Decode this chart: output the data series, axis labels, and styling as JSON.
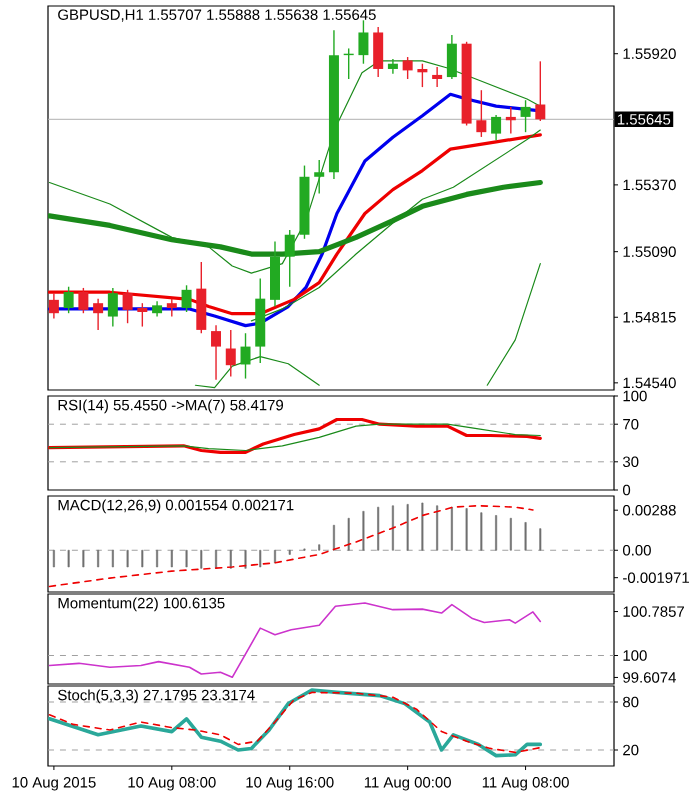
{
  "chart_data": [
    {
      "type": "candlestick",
      "title": "GBPUSD,H1 1.55707 1.55888 1.55638 1.55645",
      "xlim": [
        "2015-08-09T23:36",
        "2015-08-11T14:00"
      ],
      "ylim": [
        1.5451,
        1.5612
      ],
      "tick_labels": "y",
      "yticks": [
        {
          "value": 1.5592,
          "label": "1.55920"
        },
        {
          "value": 1.5537,
          "label": "1.55370"
        },
        {
          "value": 1.5509,
          "label": "1.55090"
        },
        {
          "value": 1.54815,
          "label": "1.54815"
        },
        {
          "value": 1.5454,
          "label": "1.54540"
        }
      ],
      "ref_lines": [
        {
          "axis": "y",
          "value": 1.55645,
          "label": "1.55645",
          "color": "#b0b0b0"
        }
      ],
      "x": [
        "2015-08-10T00:00",
        "2015-08-10T01:00",
        "2015-08-10T02:00",
        "2015-08-10T03:00",
        "2015-08-10T04:00",
        "2015-08-10T05:00",
        "2015-08-10T06:00",
        "2015-08-10T07:00",
        "2015-08-10T08:00",
        "2015-08-10T09:00",
        "2015-08-10T10:00",
        "2015-08-10T11:00",
        "2015-08-10T12:00",
        "2015-08-10T13:00",
        "2015-08-10T14:00",
        "2015-08-10T15:00",
        "2015-08-10T16:00",
        "2015-08-10T17:00",
        "2015-08-10T18:00",
        "2015-08-10T19:00",
        "2015-08-10T20:00",
        "2015-08-10T21:00",
        "2015-08-10T22:00",
        "2015-08-10T23:00",
        "2015-08-11T00:00",
        "2015-08-11T01:00",
        "2015-08-11T02:00",
        "2015-08-11T03:00",
        "2015-08-11T04:00",
        "2015-08-11T05:00",
        "2015-08-11T06:00",
        "2015-08-11T07:00",
        "2015-08-11T08:00",
        "2015-08-11T09:00"
      ],
      "ohlc": [
        [
          1.54888,
          1.54916,
          1.5481,
          1.54832
        ],
        [
          1.54854,
          1.54943,
          1.54832,
          1.54921
        ],
        [
          1.54921,
          1.54938,
          1.54832,
          1.54846
        ],
        [
          1.54874,
          1.54893,
          1.54762,
          1.54832
        ],
        [
          1.54818,
          1.54938,
          1.54776,
          1.54916
        ],
        [
          1.54916,
          1.5493,
          1.5479,
          1.54846
        ],
        [
          1.54854,
          1.54874,
          1.54776,
          1.54837
        ],
        [
          1.54832,
          1.54882,
          1.54818,
          1.54865
        ],
        [
          1.54874,
          1.54893,
          1.54818,
          1.54854
        ],
        [
          1.54854,
          1.54949,
          1.54837,
          1.5493
        ],
        [
          1.54935,
          1.55047,
          1.54748,
          1.54762
        ],
        [
          1.54757,
          1.54782,
          1.54553,
          1.54692
        ],
        [
          1.54684,
          1.54762,
          1.54567,
          1.54614
        ],
        [
          1.54617,
          1.54748,
          1.54558,
          1.54692
        ],
        [
          1.54692,
          1.54977,
          1.54623,
          1.54893
        ],
        [
          1.54888,
          1.55133,
          1.5486,
          1.55069
        ],
        [
          1.55069,
          1.55181,
          1.54943,
          1.55161
        ],
        [
          1.55161,
          1.55451,
          1.55144,
          1.55404
        ],
        [
          1.55404,
          1.55474,
          1.55334,
          1.55423
        ],
        [
          1.55423,
          1.56018,
          1.55395,
          1.55914
        ],
        [
          1.55914,
          1.55942,
          1.55814,
          1.5592
        ],
        [
          1.55914,
          1.5606,
          1.55878,
          1.56009
        ],
        [
          1.56009,
          1.56032,
          1.55822,
          1.55856
        ],
        [
          1.55856,
          1.55898,
          1.55836,
          1.55878
        ],
        [
          1.55892,
          1.55906,
          1.55814,
          1.5585
        ],
        [
          1.55856,
          1.55878,
          1.5578,
          1.55842
        ],
        [
          1.55831,
          1.55864,
          1.5578,
          1.55814
        ],
        [
          1.55822,
          1.55998,
          1.55814,
          1.55962
        ],
        [
          1.55962,
          1.5597,
          1.55619,
          1.55627
        ],
        [
          1.55641,
          1.55767,
          1.55571,
          1.55591
        ],
        [
          1.55585,
          1.55663,
          1.55557,
          1.55655
        ],
        [
          1.55655,
          1.55697,
          1.55585,
          1.55641
        ],
        [
          1.55655,
          1.55725,
          1.55591,
          1.55697
        ],
        [
          1.55707,
          1.55888,
          1.55638,
          1.55645
        ]
      ],
      "colors": [
        "#e8202a",
        "#22aa22",
        "#e8202a",
        "#e8202a",
        "#22aa22",
        "#e8202a",
        "#e8202a",
        "#22aa22",
        "#e8202a",
        "#22aa22",
        "#e8202a",
        "#e8202a",
        "#e8202a",
        "#22aa22",
        "#22aa22",
        "#22aa22",
        "#22aa22",
        "#22aa22",
        "#22aa22",
        "#22aa22",
        "#22aa22",
        "#22aa22",
        "#e8202a",
        "#22aa22",
        "#e8202a",
        "#e8202a",
        "#e8202a",
        "#22aa22",
        "#e8202a",
        "#e8202a",
        "#22aa22",
        "#e8202a",
        "#22aa22",
        "#e8202a"
      ],
      "series": [
        {
          "type": "line",
          "color": "#0000ee",
          "x": [
            "2015-08-09T23:42",
            "2015-08-10T03:48",
            "2015-08-10T09:12",
            "2015-08-10T10:54",
            "2015-08-10T13:00",
            "2015-08-10T14:00",
            "2015-08-10T15:54",
            "2015-08-10T17:06",
            "2015-08-10T18:12",
            "2015-08-10T19:12",
            "2015-08-10T21:06",
            "2015-08-10T23:00",
            "2015-08-11T01:00",
            "2015-08-11T02:54",
            "2015-08-11T04:00",
            "2015-08-11T06:00",
            "2015-08-11T09:00"
          ],
          "values": [
            1.5485,
            1.5485,
            1.5485,
            1.5482,
            1.5478,
            1.5479,
            1.5486,
            1.5494,
            1.5508,
            1.5525,
            1.5547,
            1.5557,
            1.5566,
            1.5575,
            1.5573,
            1.557,
            1.5568
          ]
        },
        {
          "type": "line",
          "color": "#ee0000",
          "x": [
            "2015-08-09T23:42",
            "2015-08-10T03:48",
            "2015-08-10T09:12",
            "2015-08-10T10:30",
            "2015-08-10T12:06",
            "2015-08-10T14:00",
            "2015-08-10T16:18",
            "2015-08-10T18:00",
            "2015-08-10T19:12",
            "2015-08-10T21:06",
            "2015-08-10T23:00",
            "2015-08-11T01:00",
            "2015-08-11T02:54",
            "2015-08-11T06:00",
            "2015-08-11T09:00"
          ],
          "values": [
            1.5492,
            1.5492,
            1.5489,
            1.5486,
            1.5483,
            1.5483,
            1.5489,
            1.5496,
            1.5508,
            1.5525,
            1.5535,
            1.5543,
            1.5552,
            1.5555,
            1.5558
          ]
        },
        {
          "type": "line",
          "color": "#1a8a1a",
          "x": [
            "2015-08-09T23:42",
            "2015-08-10T03:48",
            "2015-08-10T08:00",
            "2015-08-10T11:18",
            "2015-08-10T13:24",
            "2015-08-10T15:30",
            "2015-08-10T18:00",
            "2015-08-10T20:30",
            "2015-08-10T23:00",
            "2015-08-11T01:00",
            "2015-08-11T04:00",
            "2015-08-11T06:30",
            "2015-08-11T09:00"
          ],
          "values": [
            1.5524,
            1.552,
            1.5514,
            1.5511,
            1.5508,
            1.5508,
            1.5509,
            1.5515,
            1.5522,
            1.5528,
            1.5533,
            1.5536,
            1.5538
          ]
        },
        {
          "type": "line",
          "color": "#1a8a1a",
          "x": [
            "2015-08-09T23:42",
            "2015-08-10T03:48",
            "2015-08-10T08:00",
            "2015-08-10T10:30",
            "2015-08-10T12:06",
            "2015-08-10T13:24",
            "2015-08-10T15:30",
            "2015-08-10T17:06",
            "2015-08-10T19:06",
            "2015-08-10T20:54",
            "2015-08-10T22:06",
            "2015-08-11T01:00",
            "2015-08-11T02:42",
            "2015-08-11T04:48",
            "2015-08-11T08:06",
            "2015-08-11T09:00"
          ],
          "values": [
            1.5538,
            1.5529,
            1.5515,
            1.5511,
            1.5503,
            1.55,
            1.5504,
            1.5522,
            1.5561,
            1.5584,
            1.5589,
            1.5589,
            1.5586,
            1.5581,
            1.5573,
            1.557
          ]
        },
        {
          "type": "line",
          "color": "#1a8a1a",
          "x": [
            "2015-08-10T13:24",
            "2015-08-10T15:30",
            "2015-08-10T18:00",
            "2015-08-10T20:30",
            "2015-08-10T23:00",
            "2015-08-11T01:00",
            "2015-08-11T03:06",
            "2015-08-11T05:36",
            "2015-08-11T08:06",
            "2015-08-11T09:00"
          ],
          "values": [
            1.548,
            1.5485,
            1.5494,
            1.5508,
            1.5521,
            1.5531,
            1.5536,
            1.5546,
            1.5556,
            1.556
          ]
        },
        {
          "type": "line",
          "color": "#1a8a1a",
          "x": [
            "2015-08-10T09:36",
            "2015-08-10T10:54",
            "2015-08-10T12:06",
            "2015-08-10T14:00",
            "2015-08-10T15:54",
            "2015-08-10T18:00",
            "2015-08-11T00:00",
            "2015-08-11T05:24",
            "2015-08-11T07:18",
            "2015-08-11T09:00"
          ],
          "values": [
            1.5453,
            1.5452,
            1.5461,
            1.5465,
            1.5462,
            1.5453,
            null,
            1.5453,
            1.5472,
            1.5504
          ]
        }
      ]
    },
    {
      "type": "line",
      "title": "RSI(14) 55.4550 ->MA(7) 58.4179",
      "xlim": [
        "2015-08-09T23:36",
        "2015-08-11T14:00"
      ],
      "ylim": [
        0,
        100
      ],
      "tick_labels": "y",
      "yticks": [
        100,
        70,
        30,
        0
      ],
      "ref_lines": [
        {
          "axis": "y",
          "value": 70,
          "color": "#a0a0a0",
          "line_style": "dashed"
        },
        {
          "axis": "y",
          "value": 30,
          "color": "#a0a0a0",
          "line_style": "dashed"
        }
      ],
      "series": [
        {
          "color": "#ee0000",
          "x": [
            "2015-08-09T23:42",
            "2015-08-10T08:48",
            "2015-08-10T10:00",
            "2015-08-10T11:18",
            "2015-08-10T13:00",
            "2015-08-10T14:12",
            "2015-08-10T16:18",
            "2015-08-10T18:00",
            "2015-08-10T19:12",
            "2015-08-10T20:54",
            "2015-08-10T22:06",
            "2015-08-11T00:36",
            "2015-08-11T02:42",
            "2015-08-11T04:00",
            "2015-08-11T05:36",
            "2015-08-11T08:06",
            "2015-08-11T09:00"
          ],
          "values": [
            45,
            47,
            42,
            40,
            40,
            49,
            59,
            65,
            75,
            75,
            70,
            68,
            68,
            58,
            58,
            57,
            55
          ]
        },
        {
          "color": "#1a8a1a",
          "x": [
            "2015-08-09T23:42",
            "2015-08-10T08:48",
            "2015-08-10T10:30",
            "2015-08-10T13:00",
            "2015-08-10T15:30",
            "2015-08-10T18:00",
            "2015-08-10T20:30",
            "2015-08-10T22:06",
            "2015-08-11T02:42",
            "2015-08-11T04:48",
            "2015-08-11T07:18",
            "2015-08-11T09:00"
          ],
          "values": [
            45,
            47,
            44,
            42,
            47,
            56,
            68,
            70,
            70,
            65,
            59,
            58
          ]
        }
      ]
    },
    {
      "type": "bar",
      "title": "MACD(12,26,9) 0.001554 0.002171",
      "xlim": [
        "2015-08-09T23:36",
        "2015-08-11T14:00"
      ],
      "ylim": [
        -0.003,
        0.0039
      ],
      "tick_labels": "y",
      "yticks": [
        0.00288,
        {
          "value": 0,
          "label": "0.00"
        },
        -0.001971
      ],
      "ref_lines": [
        {
          "axis": "y",
          "value": 0,
          "color": "#a0a0a0",
          "line_style": "dashed"
        }
      ],
      "series": [
        {
          "type": "bar",
          "color": "#707070",
          "x": [
            "2015-08-10T00:00",
            "2015-08-10T01:00",
            "2015-08-10T02:00",
            "2015-08-10T03:00",
            "2015-08-10T04:00",
            "2015-08-10T05:00",
            "2015-08-10T06:00",
            "2015-08-10T07:00",
            "2015-08-10T08:00",
            "2015-08-10T09:00",
            "2015-08-10T10:00",
            "2015-08-10T11:00",
            "2015-08-10T12:00",
            "2015-08-10T13:00",
            "2015-08-10T14:00",
            "2015-08-10T15:00",
            "2015-08-10T16:00",
            "2015-08-10T17:00",
            "2015-08-10T18:00",
            "2015-08-10T19:00",
            "2015-08-10T20:00",
            "2015-08-10T21:00",
            "2015-08-10T22:00",
            "2015-08-10T23:00",
            "2015-08-11T00:00",
            "2015-08-11T01:00",
            "2015-08-11T02:00",
            "2015-08-11T03:00",
            "2015-08-11T04:00",
            "2015-08-11T05:00",
            "2015-08-11T06:00",
            "2015-08-11T07:00",
            "2015-08-11T08:00",
            "2015-08-11T09:00"
          ],
          "values": [
            -0.0012,
            -0.0012,
            -0.0012,
            -0.0012,
            -0.0012,
            -0.0012,
            -0.0012,
            -0.0012,
            -0.0012,
            -0.0012,
            -0.0013,
            -0.0013,
            -0.0013,
            -0.0013,
            -0.0012,
            -0.0009,
            -0.0003,
            0.0001,
            0.0004,
            0.0018,
            0.0023,
            0.0028,
            0.0031,
            0.0032,
            0.0033,
            0.0034,
            0.0032,
            0.0031,
            0.003,
            0.0027,
            0.0025,
            0.0023,
            0.002,
            0.001554
          ]
        },
        {
          "type": "line",
          "line_style": "dashed",
          "color": "#ee0000",
          "x": [
            "2015-08-09T23:42",
            "2015-08-10T03:48",
            "2015-08-10T08:00",
            "2015-08-10T12:06",
            "2015-08-10T15:00",
            "2015-08-10T18:00",
            "2015-08-10T20:30",
            "2015-08-10T23:00",
            "2015-08-11T01:00",
            "2015-08-11T03:06",
            "2015-08-11T04:48",
            "2015-08-11T07:18",
            "2015-08-11T08:30"
          ],
          "values": [
            -0.0026,
            -0.002,
            -0.0015,
            -0.0012,
            -0.0009,
            -0.0003,
            0.0006,
            0.0016,
            0.0025,
            0.0031,
            0.0032,
            0.0031,
            0.0029
          ]
        }
      ]
    },
    {
      "type": "line",
      "title": "Momentum(22) 100.6135",
      "xlim": [
        "2015-08-09T23:36",
        "2015-08-11T14:00"
      ],
      "ylim": [
        99.49,
        101.1
      ],
      "tick_labels": "y",
      "yticks": [
        100.7857,
        100,
        99.6074
      ],
      "ref_lines": [
        {
          "axis": "y",
          "value": 100,
          "color": "#a0a0a0",
          "line_style": "dashed"
        }
      ],
      "series": [
        {
          "color": "#cc33cc",
          "x": [
            "2015-08-09T23:42",
            "2015-08-10T01:42",
            "2015-08-10T03:48",
            "2015-08-10T05:54",
            "2015-08-10T07:06",
            "2015-08-10T09:12",
            "2015-08-10T10:00",
            "2015-08-10T11:18",
            "2015-08-10T12:06",
            "2015-08-10T14:00",
            "2015-08-10T15:00",
            "2015-08-10T16:06",
            "2015-08-10T18:00",
            "2015-08-10T19:06",
            "2015-08-10T21:06",
            "2015-08-10T23:00",
            "2015-08-11T01:00",
            "2015-08-11T02:18",
            "2015-08-11T03:00",
            "2015-08-11T04:24",
            "2015-08-11T05:12",
            "2015-08-11T06:54",
            "2015-08-11T07:18",
            "2015-08-11T08:30",
            "2015-08-11T09:00"
          ],
          "values": [
            99.82,
            99.86,
            99.79,
            99.82,
            99.89,
            99.79,
            99.67,
            99.7,
            99.61,
            100.49,
            100.37,
            100.46,
            100.54,
            100.88,
            100.94,
            100.82,
            100.83,
            100.76,
            100.91,
            100.66,
            100.59,
            100.64,
            100.58,
            100.78,
            100.61
          ]
        }
      ]
    },
    {
      "type": "line",
      "title": "Stoch(5,3,3) 27.1795 23.3174",
      "xlim": [
        "2015-08-09T23:36",
        "2015-08-11T14:00"
      ],
      "ylim": [
        0,
        100
      ],
      "yticks": [
        80,
        20
      ],
      "xticks": [
        {
          "value": "2015-08-10T00:00",
          "label": "10 Aug 2015"
        },
        {
          "value": "2015-08-10T08:00",
          "label": "10 Aug 08:00"
        },
        {
          "value": "2015-08-10T16:00",
          "label": "10 Aug 16:00"
        },
        {
          "value": "2015-08-11T00:00",
          "label": "11 Aug 00:00"
        },
        {
          "value": "2015-08-11T08:00",
          "label": "11 Aug 08:00"
        }
      ],
      "ref_lines": [
        {
          "axis": "y",
          "value": 80,
          "color": "#a0a0a0",
          "line_style": "dashed"
        },
        {
          "axis": "y",
          "value": 20,
          "color": "#a0a0a0",
          "line_style": "dashed"
        }
      ],
      "series": [
        {
          "color": "#2aa89a",
          "x": [
            "2015-08-09T23:42",
            "2015-08-10T03:00",
            "2015-08-10T05:54",
            "2015-08-10T08:00",
            "2015-08-10T09:00",
            "2015-08-10T10:00",
            "2015-08-10T11:18",
            "2015-08-10T12:30",
            "2015-08-10T13:24",
            "2015-08-10T14:36",
            "2015-08-10T15:54",
            "2015-08-10T17:30",
            "2015-08-10T19:12",
            "2015-08-10T22:06",
            "2015-08-10T23:48",
            "2015-08-11T01:30",
            "2015-08-11T02:18",
            "2015-08-11T03:06",
            "2015-08-11T04:48",
            "2015-08-11T06:00",
            "2015-08-11T07:18",
            "2015-08-11T08:06",
            "2015-08-11T09:00"
          ],
          "values": [
            59,
            39,
            50,
            43,
            59,
            36,
            31,
            20,
            22,
            45,
            78,
            95,
            92,
            88,
            78,
            55,
            20,
            39,
            27,
            13,
            14,
            27,
            27
          ]
        },
        {
          "color": "#ee0000",
          "line_style": "dashed",
          "x": [
            "2015-08-09T23:42",
            "2015-08-10T01:18",
            "2015-08-10T03:48",
            "2015-08-10T05:54",
            "2015-08-10T08:00",
            "2015-08-10T09:36",
            "2015-08-10T11:18",
            "2015-08-10T12:30",
            "2015-08-10T13:48",
            "2015-08-10T15:00",
            "2015-08-10T16:18",
            "2015-08-10T17:30",
            "2015-08-10T20:30",
            "2015-08-10T23:00",
            "2015-08-11T00:36",
            "2015-08-11T02:18",
            "2015-08-11T04:00",
            "2015-08-11T05:36",
            "2015-08-11T07:18",
            "2015-08-11T09:00"
          ],
          "values": [
            64,
            52,
            45,
            55,
            48,
            45,
            39,
            27,
            31,
            55,
            83,
            92,
            91,
            86,
            71,
            43,
            31,
            22,
            17,
            23
          ]
        }
      ]
    }
  ]
}
